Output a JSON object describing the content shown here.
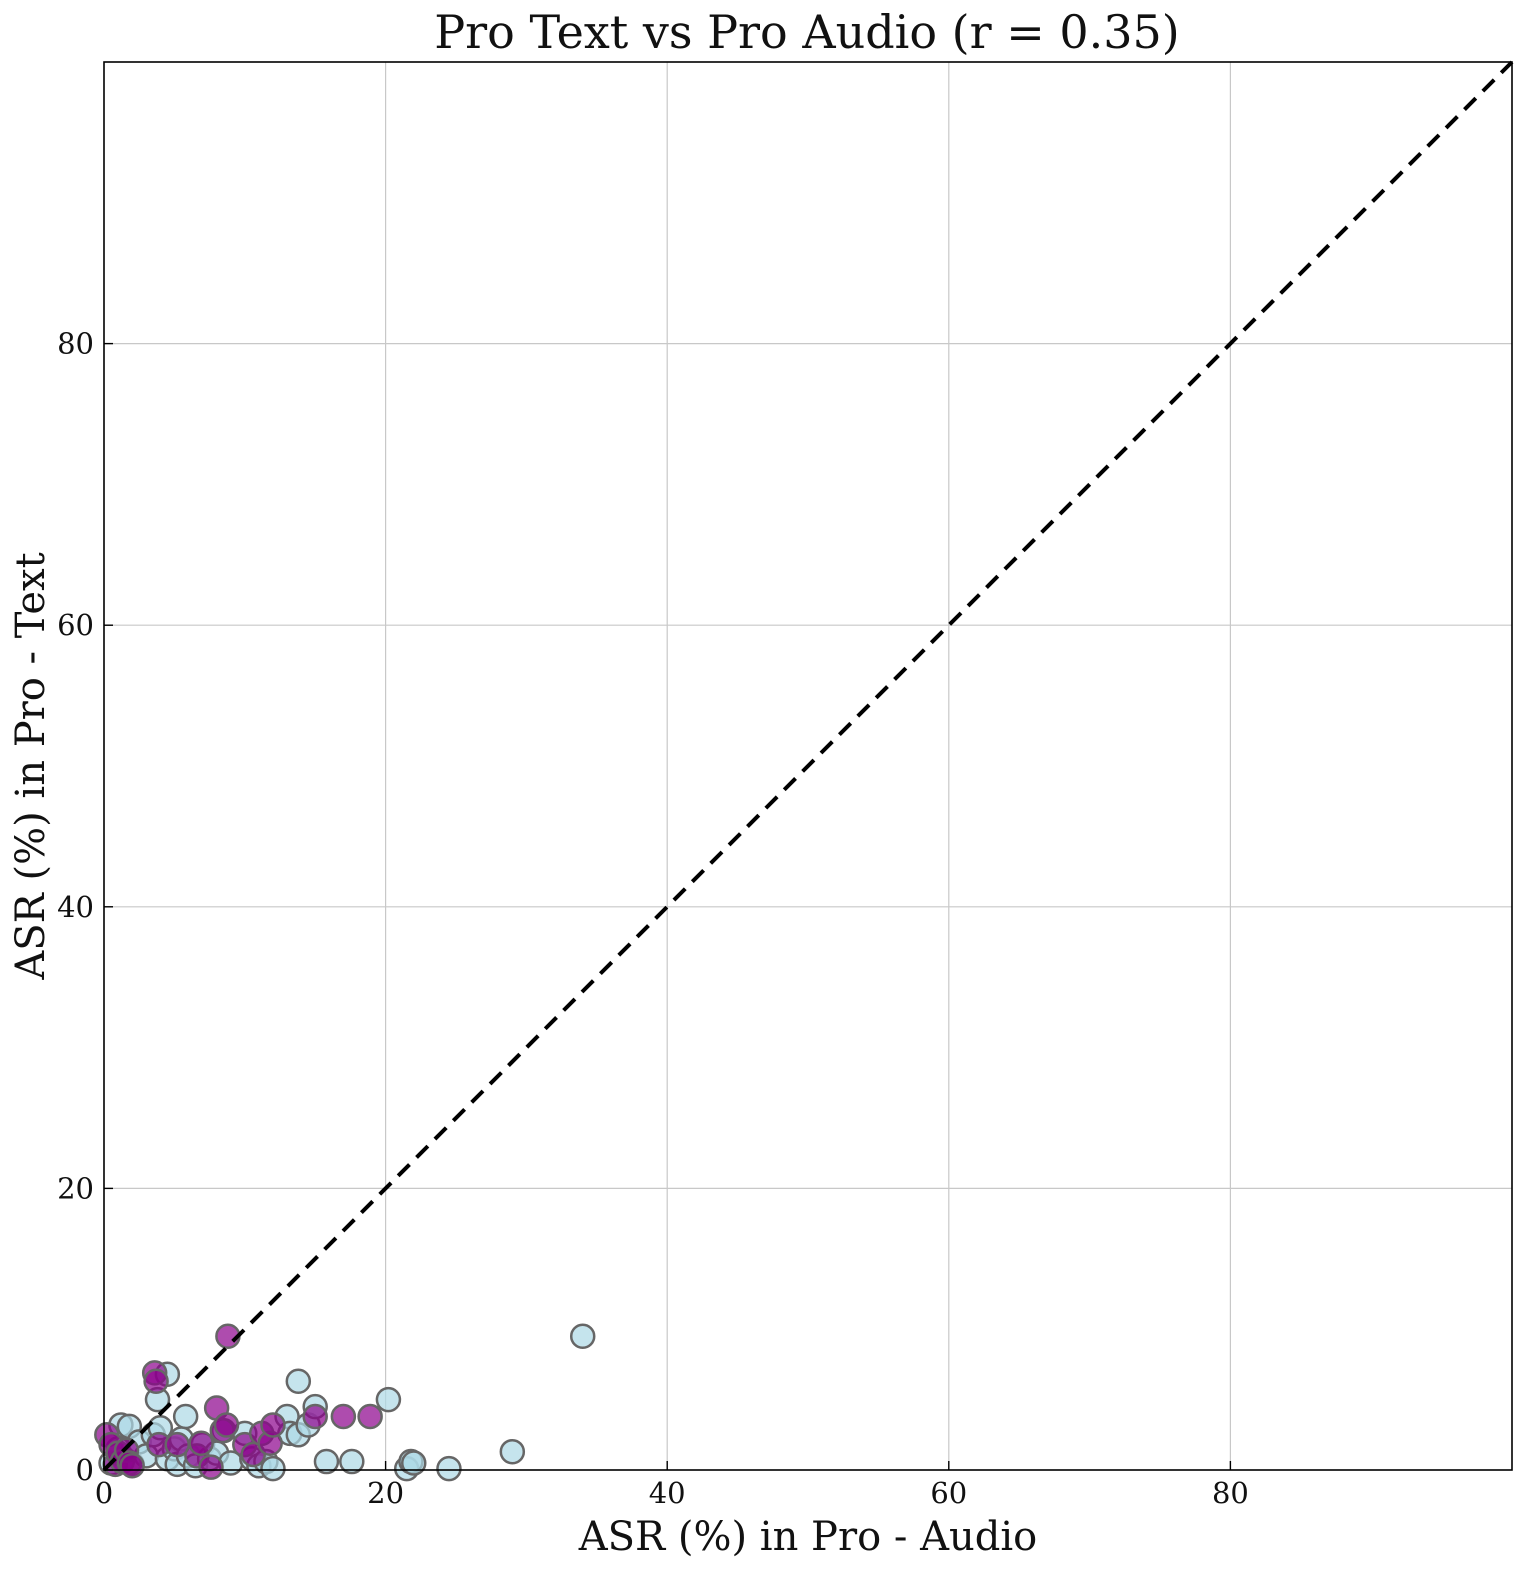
{
  "chart_data": {
    "type": "scatter",
    "title": "Pro Text vs Pro Audio (r = 0.35)",
    "xlabel": "ASR (%) in Pro - Audio",
    "ylabel": "ASR (%) in Pro - Text",
    "xlim": [
      0,
      100
    ],
    "ylim": [
      0,
      100
    ],
    "xticks": [
      0,
      20,
      40,
      60,
      80
    ],
    "yticks": [
      0,
      20,
      40,
      60,
      80
    ],
    "grid": true,
    "reference_line": "y = x (dashed)",
    "series": [
      {
        "color": "#add8e6",
        "points": [
          [
            0.5,
            0.5
          ],
          [
            1.0,
            1.5
          ],
          [
            1.2,
            3.2
          ],
          [
            1.8,
            3.1
          ],
          [
            2.0,
            0.4
          ],
          [
            2.5,
            2.0
          ],
          [
            3.0,
            1.0
          ],
          [
            3.5,
            2.5
          ],
          [
            3.8,
            5.0
          ],
          [
            4.0,
            3.0
          ],
          [
            4.5,
            6.8
          ],
          [
            4.5,
            0.8
          ],
          [
            5.0,
            1.5
          ],
          [
            5.2,
            0.4
          ],
          [
            5.8,
            3.8
          ],
          [
            5.5,
            2.2
          ],
          [
            6.0,
            1.0
          ],
          [
            6.5,
            0.3
          ],
          [
            7.0,
            1.8
          ],
          [
            7.5,
            0.8
          ],
          [
            8.0,
            1.2
          ],
          [
            8.5,
            2.8
          ],
          [
            9.0,
            0.5
          ],
          [
            10.0,
            2.6
          ],
          [
            10.5,
            0.8
          ],
          [
            11.0,
            0.3
          ],
          [
            11.5,
            0.6
          ],
          [
            12.0,
            0.1
          ],
          [
            13.0,
            3.8
          ],
          [
            13.2,
            2.6
          ],
          [
            13.8,
            2.5
          ],
          [
            13.8,
            6.3
          ],
          [
            14.5,
            3.2
          ],
          [
            15.0,
            4.5
          ],
          [
            15.8,
            0.6
          ],
          [
            17.6,
            0.6
          ],
          [
            20.2,
            5.0
          ],
          [
            21.5,
            0.1
          ],
          [
            21.8,
            0.6
          ],
          [
            22.0,
            0.5
          ],
          [
            24.5,
            0.1
          ],
          [
            29.0,
            1.3
          ],
          [
            34.0,
            9.5
          ]
        ]
      },
      {
        "color": "#8b008b",
        "points": [
          [
            0.2,
            2.5
          ],
          [
            0.5,
            1.8
          ],
          [
            0.8,
            0.4
          ],
          [
            1.0,
            1.2
          ],
          [
            1.3,
            0.6
          ],
          [
            1.6,
            1.4
          ],
          [
            1.8,
            0.5
          ],
          [
            2.0,
            0.3
          ],
          [
            3.6,
            6.9
          ],
          [
            3.7,
            6.3
          ],
          [
            3.9,
            1.8
          ],
          [
            5.2,
            1.8
          ],
          [
            6.6,
            1.0
          ],
          [
            6.9,
            1.9
          ],
          [
            7.6,
            0.2
          ],
          [
            8.0,
            4.4
          ],
          [
            8.4,
            2.8
          ],
          [
            8.7,
            3.2
          ],
          [
            8.8,
            9.5
          ],
          [
            10.0,
            1.8
          ],
          [
            10.6,
            1.1
          ],
          [
            11.2,
            2.6
          ],
          [
            11.8,
            1.9
          ],
          [
            12.0,
            3.2
          ],
          [
            15.0,
            3.8
          ],
          [
            17.0,
            3.8
          ],
          [
            18.9,
            3.8
          ]
        ]
      }
    ]
  }
}
